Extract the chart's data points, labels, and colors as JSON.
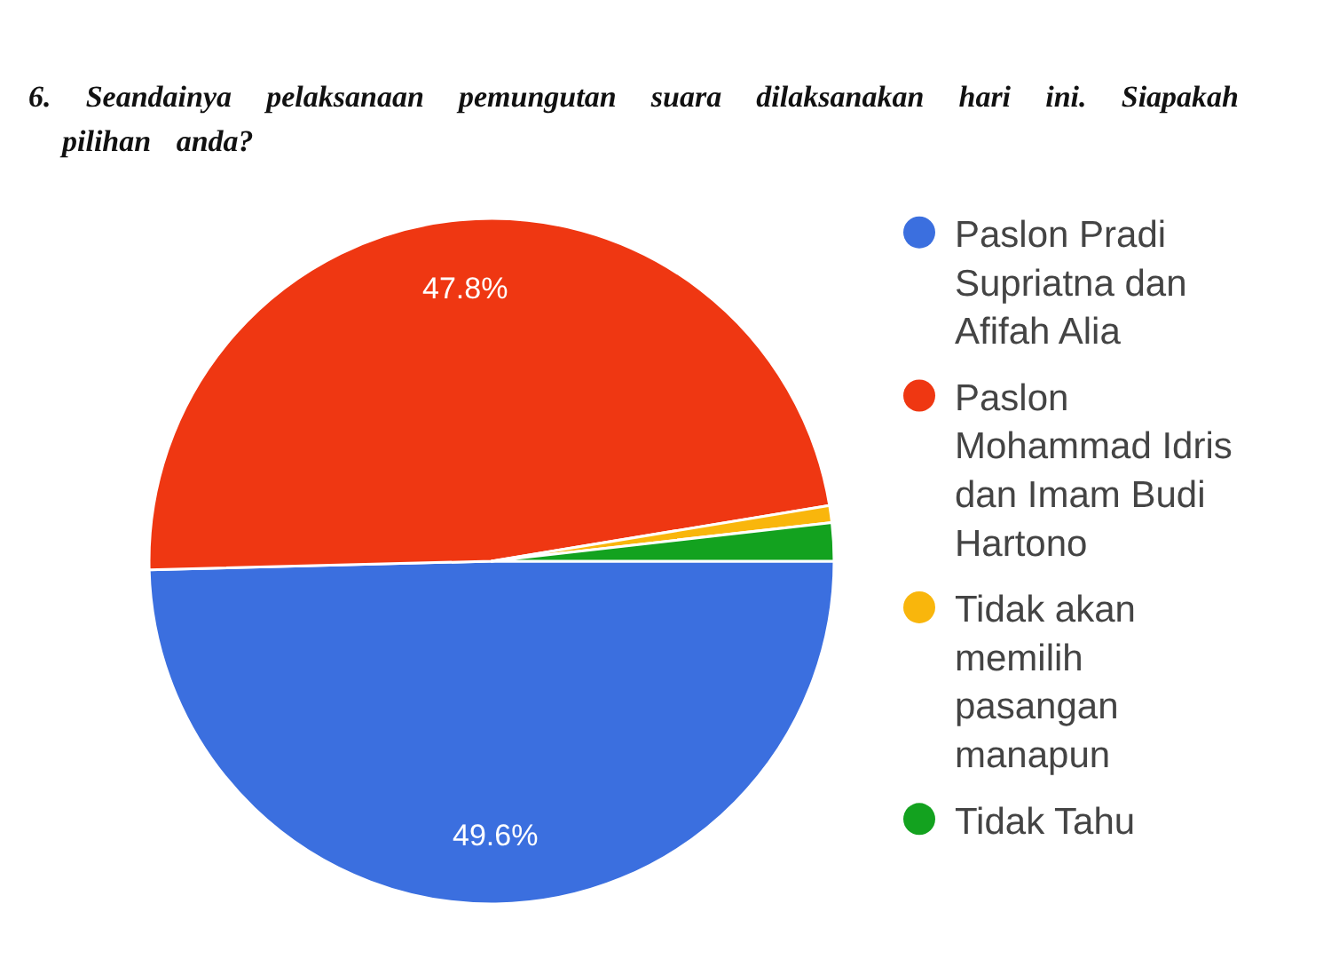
{
  "chart_data": {
    "type": "pie",
    "title": "6. Seandainya pelaksanaan pemungutan suara dilaksanakan hari ini. Siapakah pilihan anda?",
    "categories": [
      "Paslon Pradi Supriatna dan Afifah Alia",
      "Paslon Mohammad Idris dan Imam Budi Hartono",
      "Tidak akan memilih pasangan manapun",
      "Tidak Tahu"
    ],
    "values": [
      49.6,
      47.8,
      0.8,
      1.8
    ],
    "colors": [
      "#3b6fdf",
      "#ef3712",
      "#f9b60c",
      "#13a21f"
    ],
    "value_labels": [
      "49.6%",
      "47.8%",
      null,
      null
    ],
    "legend": "right"
  }
}
